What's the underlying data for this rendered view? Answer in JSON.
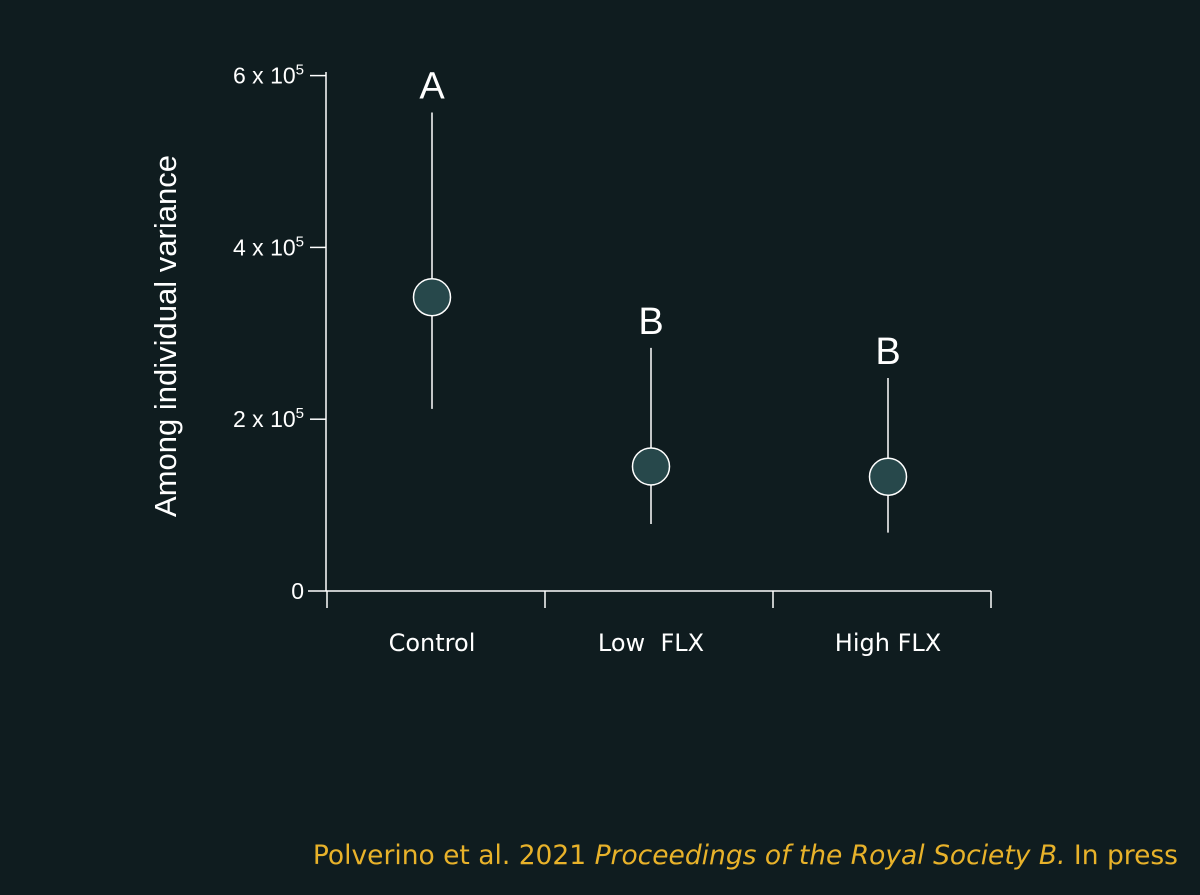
{
  "chart_data": {
    "type": "scatter",
    "title": "",
    "xlabel": "",
    "ylabel": "Among individual variance",
    "categories": [
      "Control",
      "Low  FLX",
      "High FLX"
    ],
    "values": [
      342000,
      145000,
      133000
    ],
    "error_low": [
      212000,
      78000,
      68000
    ],
    "error_high": [
      557000,
      283000,
      248000
    ],
    "significance_letters": [
      "A",
      "B",
      "B"
    ],
    "ylim": [
      0,
      620000
    ],
    "y_ticks": [
      {
        "value": 0,
        "base": "0",
        "exp": ""
      },
      {
        "value": 200000,
        "base": "2 x 10",
        "exp": "5"
      },
      {
        "value": 400000,
        "base": "4 x 10",
        "exp": "5"
      },
      {
        "value": 600000,
        "base": "6 x 10",
        "exp": "5"
      }
    ],
    "grid": false,
    "legend": "none",
    "colors": {
      "background": "#0f1c1f",
      "marker_fill": "#27484b",
      "foreground": "#ffffff"
    }
  },
  "citation": {
    "authors": "Polverino et al. 2021",
    "journal": "Proceedings of the Royal Society B.",
    "status": "In press",
    "color": "#e8b22a"
  }
}
